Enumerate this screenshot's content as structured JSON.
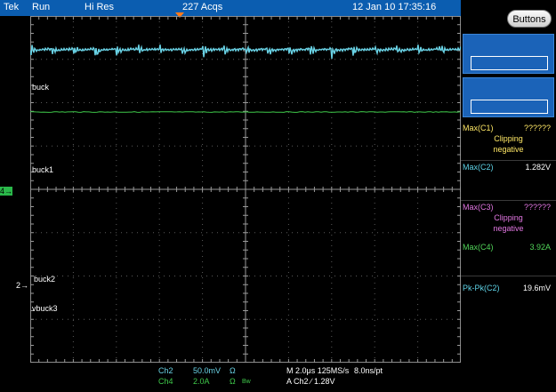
{
  "status_bar": {
    "brand": "Tek",
    "run_state": "Run",
    "acq_mode": "Hi Res",
    "acq_count": "227 Acqs",
    "timestamp": "12 Jan 10 17:35:16"
  },
  "side_panel": {
    "buttons_label": "Buttons",
    "measurements": [
      {
        "name": "Max(C1)",
        "value": "??????",
        "status": [
          "Clipping",
          "negative"
        ],
        "name_color": "#ffe866",
        "value_color": "#ffe866"
      },
      {
        "name": "Max(C2)",
        "value": "1.282V",
        "status": [],
        "name_color": "#5fd4e8",
        "value_color": "#ffffff"
      },
      {
        "name": "Max(C3)",
        "value": "??????",
        "status": [
          "Clipping",
          "negative"
        ],
        "name_color": "#e377e3",
        "value_color": "#e377e3"
      },
      {
        "name": "Max(C4)",
        "value": "3.92A",
        "status": [],
        "name_color": "#52d65a",
        "value_color": "#52d65a"
      },
      {
        "name": "Pk-Pk(C2)",
        "value": "19.6mV",
        "status": [],
        "name_color": "#5fd4e8",
        "value_color": "#ffffff"
      }
    ]
  },
  "channel_labels": [
    "buck",
    "buck1",
    "buck2",
    "vbuck3"
  ],
  "markers": {
    "ch4": "4",
    "ch2": "2"
  },
  "footer": {
    "ch2_name": "Ch2",
    "ch2_scale": "50.0mV",
    "ch2_coupling": "Ω",
    "ch4_name": "Ch4",
    "ch4_scale": "2.0A",
    "ch4_coupling": "Ω",
    "ch4_bw": "Bw",
    "timebase": "M 2.0μs 125MS/s",
    "resolution": "8.0ns/pt",
    "trigger": "A  Ch2  ∕  1.28V"
  },
  "colors": {
    "ch2": "#6ad3e6",
    "ch4": "#3fc94a",
    "ch1": "#ffe866",
    "ch3": "#e377e3",
    "accent": "#0b5db0"
  }
}
